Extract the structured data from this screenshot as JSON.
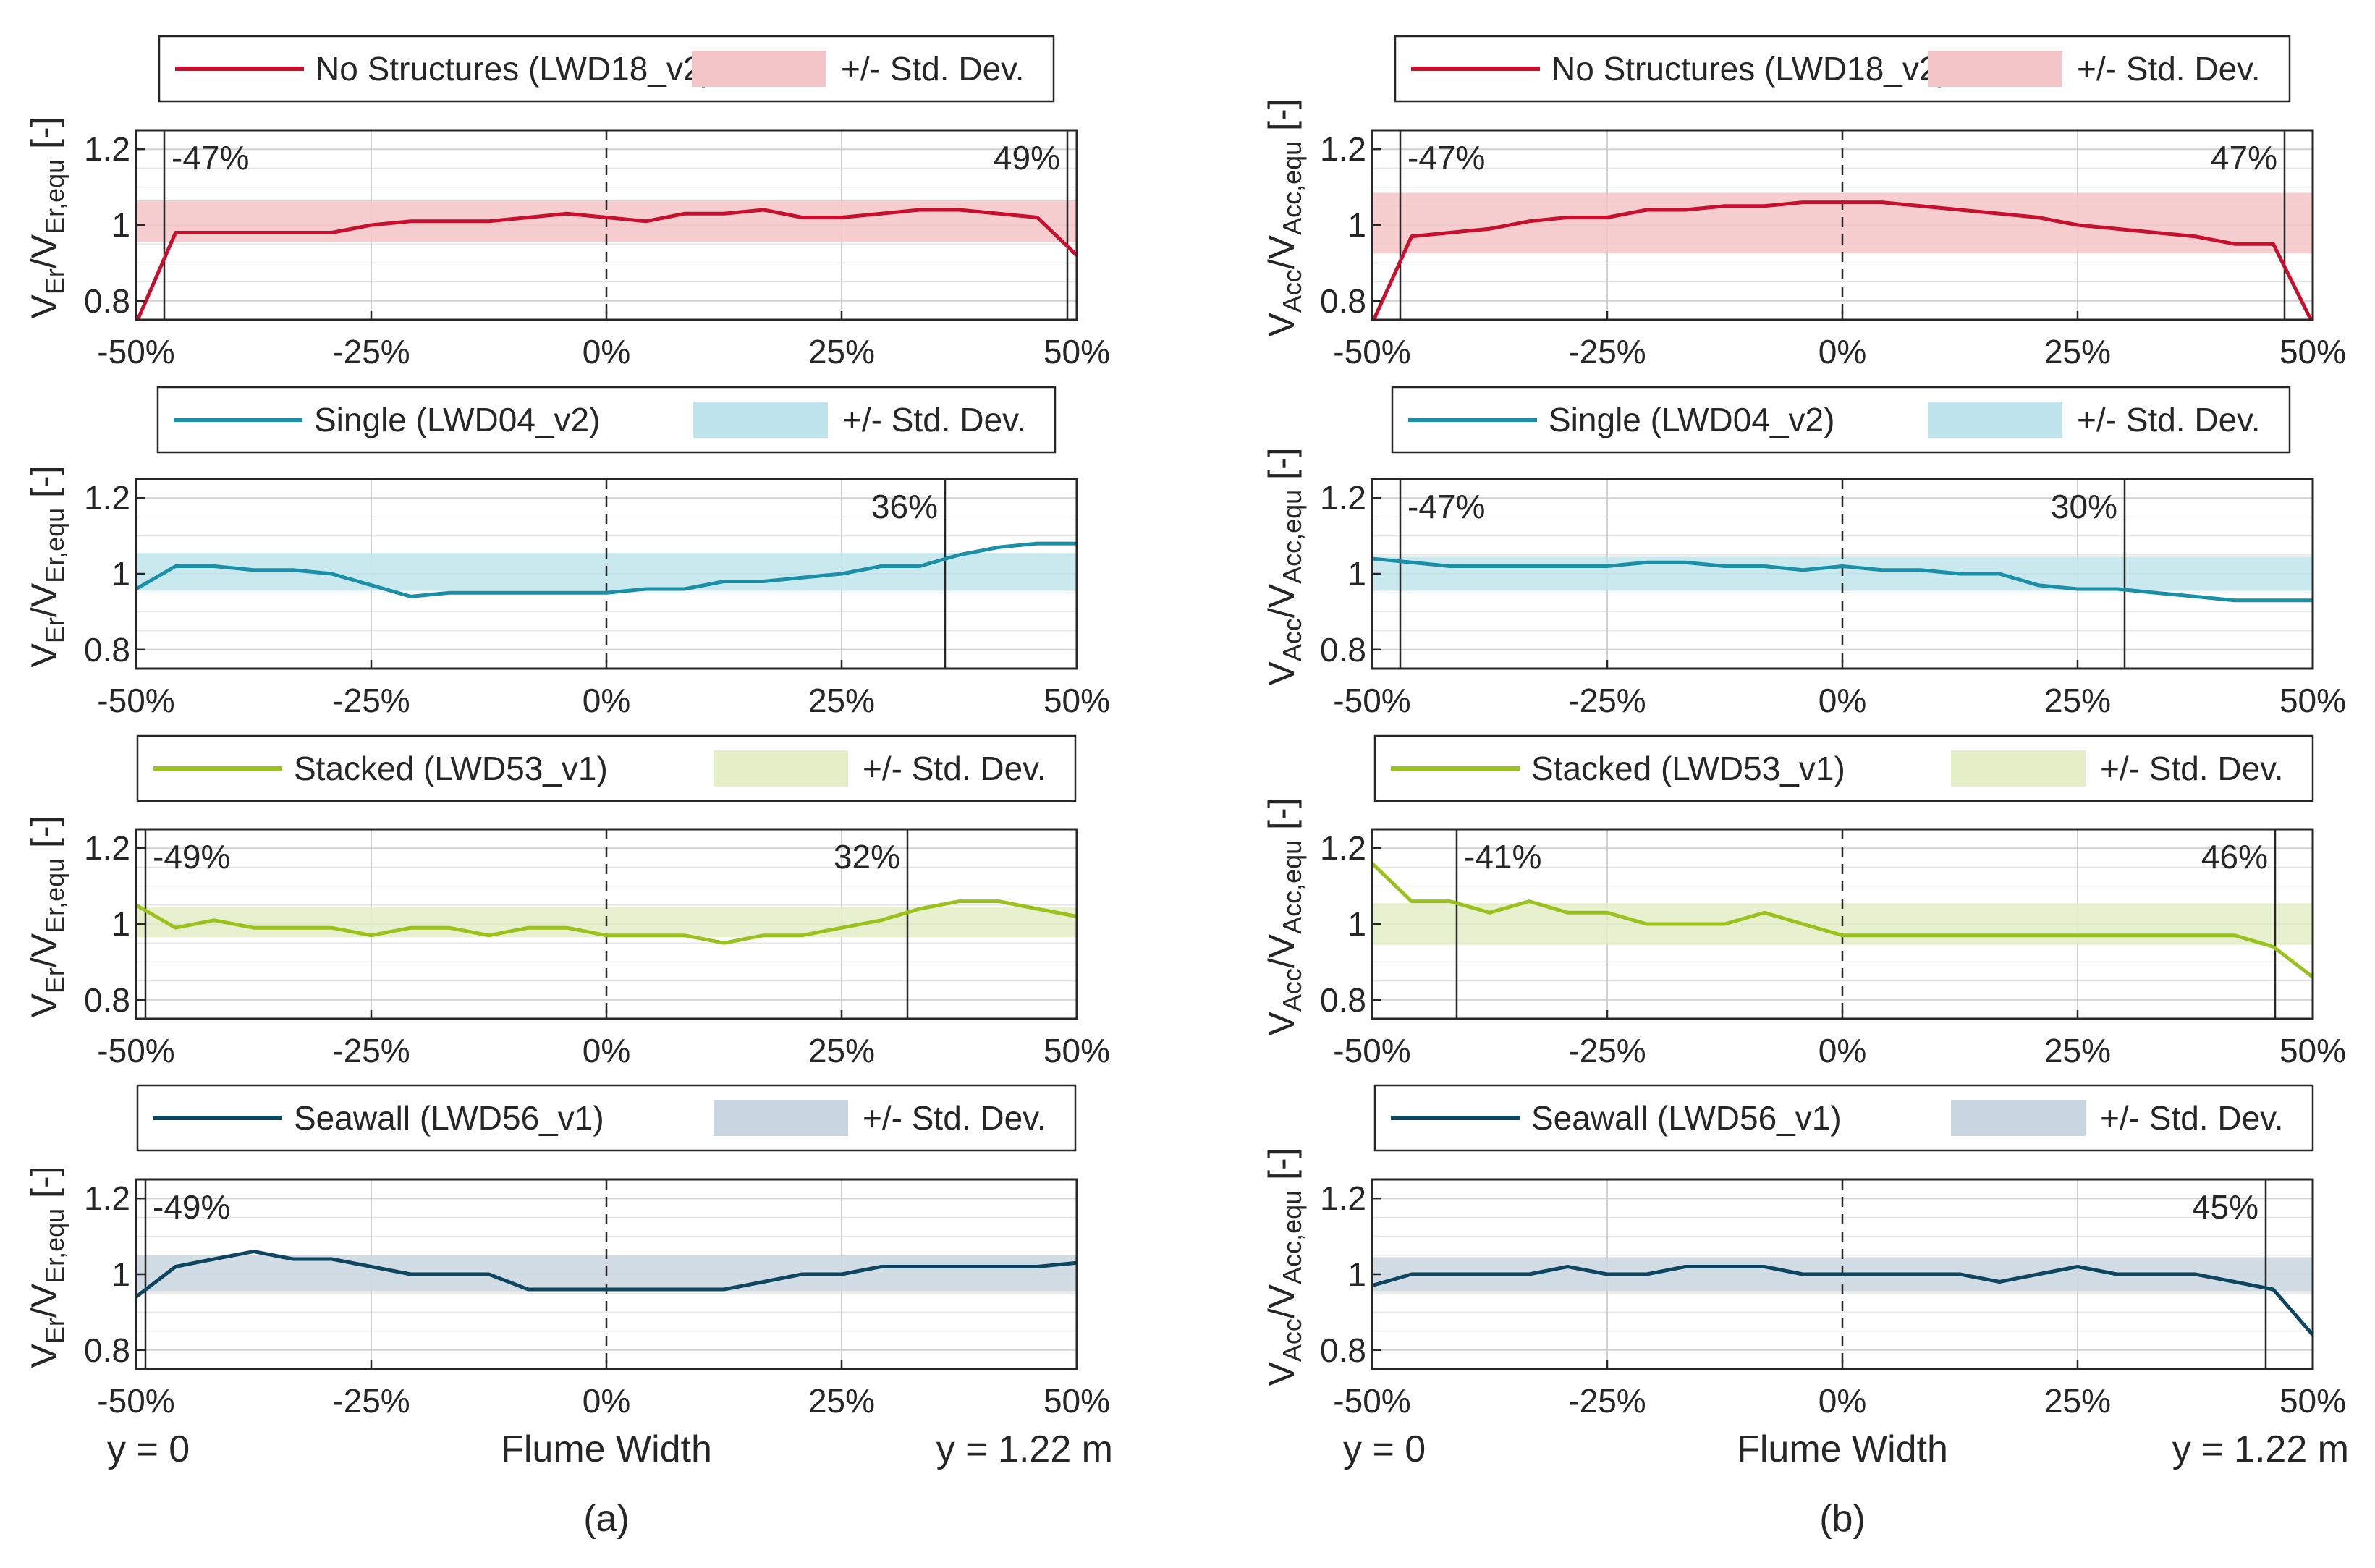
{
  "colors": {
    "none": "#c8102e",
    "none_band": "#f4c5c8",
    "single": "#1a8fa8",
    "single_band": "#bfe5ec",
    "stacked": "#9ac21c",
    "stacked_band": "#e4efc7",
    "seawall": "#0e4560",
    "seawall_band": "#c9d6df"
  },
  "chart_data": {
    "type": "line",
    "x_tick_labels": [
      "-50%",
      "-25%",
      "0%",
      "25%",
      "50%"
    ],
    "x_ticks": [
      -50,
      -25,
      0,
      25,
      50
    ],
    "y_tick_labels": [
      "0.8",
      "1",
      "1.2"
    ],
    "y_ticks": [
      0.8,
      1.0,
      1.2
    ],
    "xlim": [
      -50,
      50
    ],
    "ylim": [
      0.75,
      1.25
    ],
    "x": [
      -50,
      -45.8,
      -41.7,
      -37.5,
      -33.3,
      -29.2,
      -25,
      -20.8,
      -16.7,
      -12.5,
      -8.3,
      -4.2,
      0,
      4.2,
      8.3,
      12.5,
      16.7,
      20.8,
      25,
      29.2,
      33.3,
      37.5,
      41.7,
      45.8,
      50
    ],
    "legend_band_label": "+/- Std. Dev.",
    "xlabel": "Flume Width",
    "x_left_label": "y = 0",
    "x_right_label": "y = 1.22 m",
    "columns": [
      {
        "panel_label": "(a)",
        "ylabel_main": "V",
        "ylabel_sub1": "Er",
        "ylabel_sep": "/V",
        "ylabel_sub2": "Er,equ",
        "ylabel_unit": " [-]",
        "panels": [
          {
            "series_name": "No Structures (LWD18_v2)",
            "color_key": "none",
            "values": [
              0.74,
              0.98,
              0.98,
              0.98,
              0.98,
              0.98,
              1.0,
              1.01,
              1.01,
              1.01,
              1.02,
              1.03,
              1.02,
              1.01,
              1.03,
              1.03,
              1.04,
              1.02,
              1.02,
              1.03,
              1.04,
              1.04,
              1.03,
              1.02,
              0.92
            ],
            "band": [
              0.955,
              1.065
            ],
            "annotations": [
              {
                "x": -47,
                "text": "-47%",
                "side": "right"
              },
              {
                "x": 49,
                "text": "49%",
                "side": "left"
              }
            ]
          },
          {
            "series_name": "Single (LWD04_v2)",
            "color_key": "single",
            "values": [
              0.96,
              1.02,
              1.02,
              1.01,
              1.01,
              1.0,
              0.97,
              0.94,
              0.95,
              0.95,
              0.95,
              0.95,
              0.95,
              0.96,
              0.96,
              0.98,
              0.98,
              0.99,
              1.0,
              1.02,
              1.02,
              1.05,
              1.07,
              1.08,
              1.08
            ],
            "band": [
              0.955,
              1.055
            ],
            "annotations": [
              {
                "x": 36,
                "text": "36%",
                "side": "left"
              }
            ]
          },
          {
            "series_name": "Stacked (LWD53_v1)",
            "color_key": "stacked",
            "values": [
              1.05,
              0.99,
              1.01,
              0.99,
              0.99,
              0.99,
              0.97,
              0.99,
              0.99,
              0.97,
              0.99,
              0.99,
              0.97,
              0.97,
              0.97,
              0.95,
              0.97,
              0.97,
              0.99,
              1.01,
              1.04,
              1.06,
              1.06,
              1.04,
              1.02
            ],
            "band": [
              0.965,
              1.045
            ],
            "annotations": [
              {
                "x": -49,
                "text": "-49%",
                "side": "right"
              },
              {
                "x": 32,
                "text": "32%",
                "side": "left"
              }
            ]
          },
          {
            "series_name": "Seawall (LWD56_v1)",
            "color_key": "seawall",
            "values": [
              0.94,
              1.02,
              1.04,
              1.06,
              1.04,
              1.04,
              1.02,
              1.0,
              1.0,
              1.0,
              0.96,
              0.96,
              0.96,
              0.96,
              0.96,
              0.96,
              0.98,
              1.0,
              1.0,
              1.02,
              1.02,
              1.02,
              1.02,
              1.02,
              1.03
            ],
            "band": [
              0.955,
              1.05
            ],
            "annotations": [
              {
                "x": -49,
                "text": "-49%",
                "side": "right"
              }
            ]
          }
        ]
      },
      {
        "panel_label": "(b)",
        "ylabel_main": "V",
        "ylabel_sub1": "Acc",
        "ylabel_sep": "/V",
        "ylabel_sub2": "Acc,equ",
        "ylabel_unit": " [-]",
        "panels": [
          {
            "series_name": "No Structures (LWD18_v2)",
            "color_key": "none",
            "values": [
              0.74,
              0.97,
              0.98,
              0.99,
              1.01,
              1.02,
              1.02,
              1.04,
              1.04,
              1.05,
              1.05,
              1.06,
              1.06,
              1.06,
              1.05,
              1.04,
              1.03,
              1.02,
              1.0,
              0.99,
              0.98,
              0.97,
              0.95,
              0.95,
              0.74
            ],
            "band": [
              0.925,
              1.085
            ],
            "annotations": [
              {
                "x": -47,
                "text": "-47%",
                "side": "right"
              },
              {
                "x": 47,
                "text": "47%",
                "side": "left"
              }
            ]
          },
          {
            "series_name": "Single (LWD04_v2)",
            "color_key": "single",
            "values": [
              1.04,
              1.03,
              1.02,
              1.02,
              1.02,
              1.02,
              1.02,
              1.03,
              1.03,
              1.02,
              1.02,
              1.01,
              1.02,
              1.01,
              1.01,
              1.0,
              1.0,
              0.97,
              0.96,
              0.96,
              0.95,
              0.94,
              0.93,
              0.93,
              0.93
            ],
            "band": [
              0.955,
              1.045
            ],
            "annotations": [
              {
                "x": -47,
                "text": "-47%",
                "side": "right"
              },
              {
                "x": 30,
                "text": "30%",
                "side": "left"
              }
            ]
          },
          {
            "series_name": "Stacked (LWD53_v1)",
            "color_key": "stacked",
            "values": [
              1.16,
              1.06,
              1.06,
              1.03,
              1.06,
              1.03,
              1.03,
              1.0,
              1.0,
              1.0,
              1.03,
              1.0,
              0.97,
              0.97,
              0.97,
              0.97,
              0.97,
              0.97,
              0.97,
              0.97,
              0.97,
              0.97,
              0.97,
              0.94,
              0.86
            ],
            "band": [
              0.945,
              1.055
            ],
            "annotations": [
              {
                "x": -41,
                "text": "-41%",
                "side": "right"
              },
              {
                "x": 46,
                "text": "46%",
                "side": "left"
              }
            ]
          },
          {
            "series_name": "Seawall (LWD56_v1)",
            "color_key": "seawall",
            "values": [
              0.97,
              1.0,
              1.0,
              1.0,
              1.0,
              1.02,
              1.0,
              1.0,
              1.02,
              1.02,
              1.02,
              1.0,
              1.0,
              1.0,
              1.0,
              1.0,
              0.98,
              1.0,
              1.02,
              1.0,
              1.0,
              1.0,
              0.98,
              0.96,
              0.84
            ],
            "band": [
              0.955,
              1.045
            ],
            "annotations": [
              {
                "x": 45,
                "text": "45%",
                "side": "left"
              }
            ]
          }
        ]
      }
    ]
  }
}
